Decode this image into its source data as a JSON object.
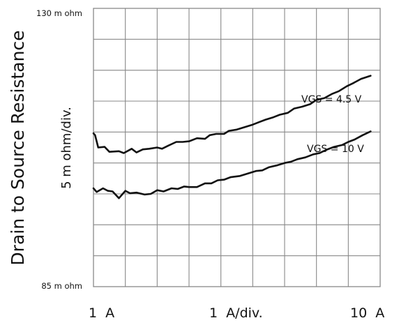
{
  "chart_data": {
    "type": "line",
    "ylabel": "Drain to Source Resistance",
    "y_scale_label": "5 m ohm/div.",
    "y_top_label": "130 m ohm",
    "y_bottom_label": "85 m ohm",
    "x_left_label": "1  A",
    "x_mid_label": "1  A/div.",
    "x_right_label": "10  A",
    "xlim": [
      1,
      10
    ],
    "ylim": [
      85,
      130
    ],
    "x_divisions": 9,
    "y_divisions": 9,
    "grid": true,
    "line_color": "#111111",
    "grid_color": "#888888",
    "series": [
      {
        "name": "VGS = 4.5 V",
        "x": [
          1.0,
          1.05,
          1.15,
          1.35,
          1.5,
          1.8,
          1.95,
          2.2,
          2.35,
          2.55,
          2.75,
          3.0,
          3.15,
          3.35,
          3.6,
          3.8,
          4.0,
          4.25,
          4.5,
          4.65,
          4.85,
          5.1,
          5.25,
          5.5,
          5.75,
          6.0,
          6.2,
          6.4,
          6.65,
          6.85,
          7.1,
          7.3,
          7.55,
          7.8,
          8.0,
          8.25,
          8.5,
          8.7,
          8.95,
          9.15,
          9.4,
          9.7
        ],
        "values": [
          109.8,
          109.5,
          107.5,
          107.6,
          106.8,
          106.9,
          106.6,
          107.3,
          106.7,
          107.2,
          107.3,
          107.5,
          107.3,
          107.8,
          108.4,
          108.4,
          108.5,
          109.0,
          108.9,
          109.5,
          109.7,
          109.7,
          110.2,
          110.4,
          110.8,
          111.2,
          111.6,
          112.0,
          112.4,
          112.8,
          113.1,
          113.8,
          114.1,
          114.5,
          115.2,
          115.5,
          116.2,
          116.6,
          117.4,
          117.9,
          118.6,
          119.1
        ]
      },
      {
        "name": "VGS = 10 V",
        "x": [
          1.0,
          1.1,
          1.3,
          1.45,
          1.6,
          1.8,
          2.0,
          2.15,
          2.35,
          2.6,
          2.8,
          3.0,
          3.2,
          3.45,
          3.65,
          3.85,
          4.0,
          4.25,
          4.5,
          4.7,
          4.9,
          5.1,
          5.3,
          5.6,
          5.85,
          6.1,
          6.3,
          6.5,
          6.75,
          7.0,
          7.2,
          7.4,
          7.65,
          7.9,
          8.1,
          8.3,
          8.55,
          8.8,
          9.0,
          9.2,
          9.45,
          9.7
        ],
        "values": [
          100.9,
          100.3,
          100.9,
          100.5,
          100.4,
          99.3,
          100.5,
          100.1,
          100.2,
          99.9,
          100.0,
          100.6,
          100.4,
          100.9,
          100.8,
          101.2,
          101.1,
          101.1,
          101.7,
          101.7,
          102.2,
          102.3,
          102.7,
          102.9,
          103.3,
          103.7,
          103.8,
          104.3,
          104.6,
          105.0,
          105.2,
          105.6,
          105.9,
          106.4,
          106.6,
          107.1,
          107.6,
          107.9,
          108.4,
          108.8,
          109.5,
          110.1
        ]
      }
    ]
  }
}
